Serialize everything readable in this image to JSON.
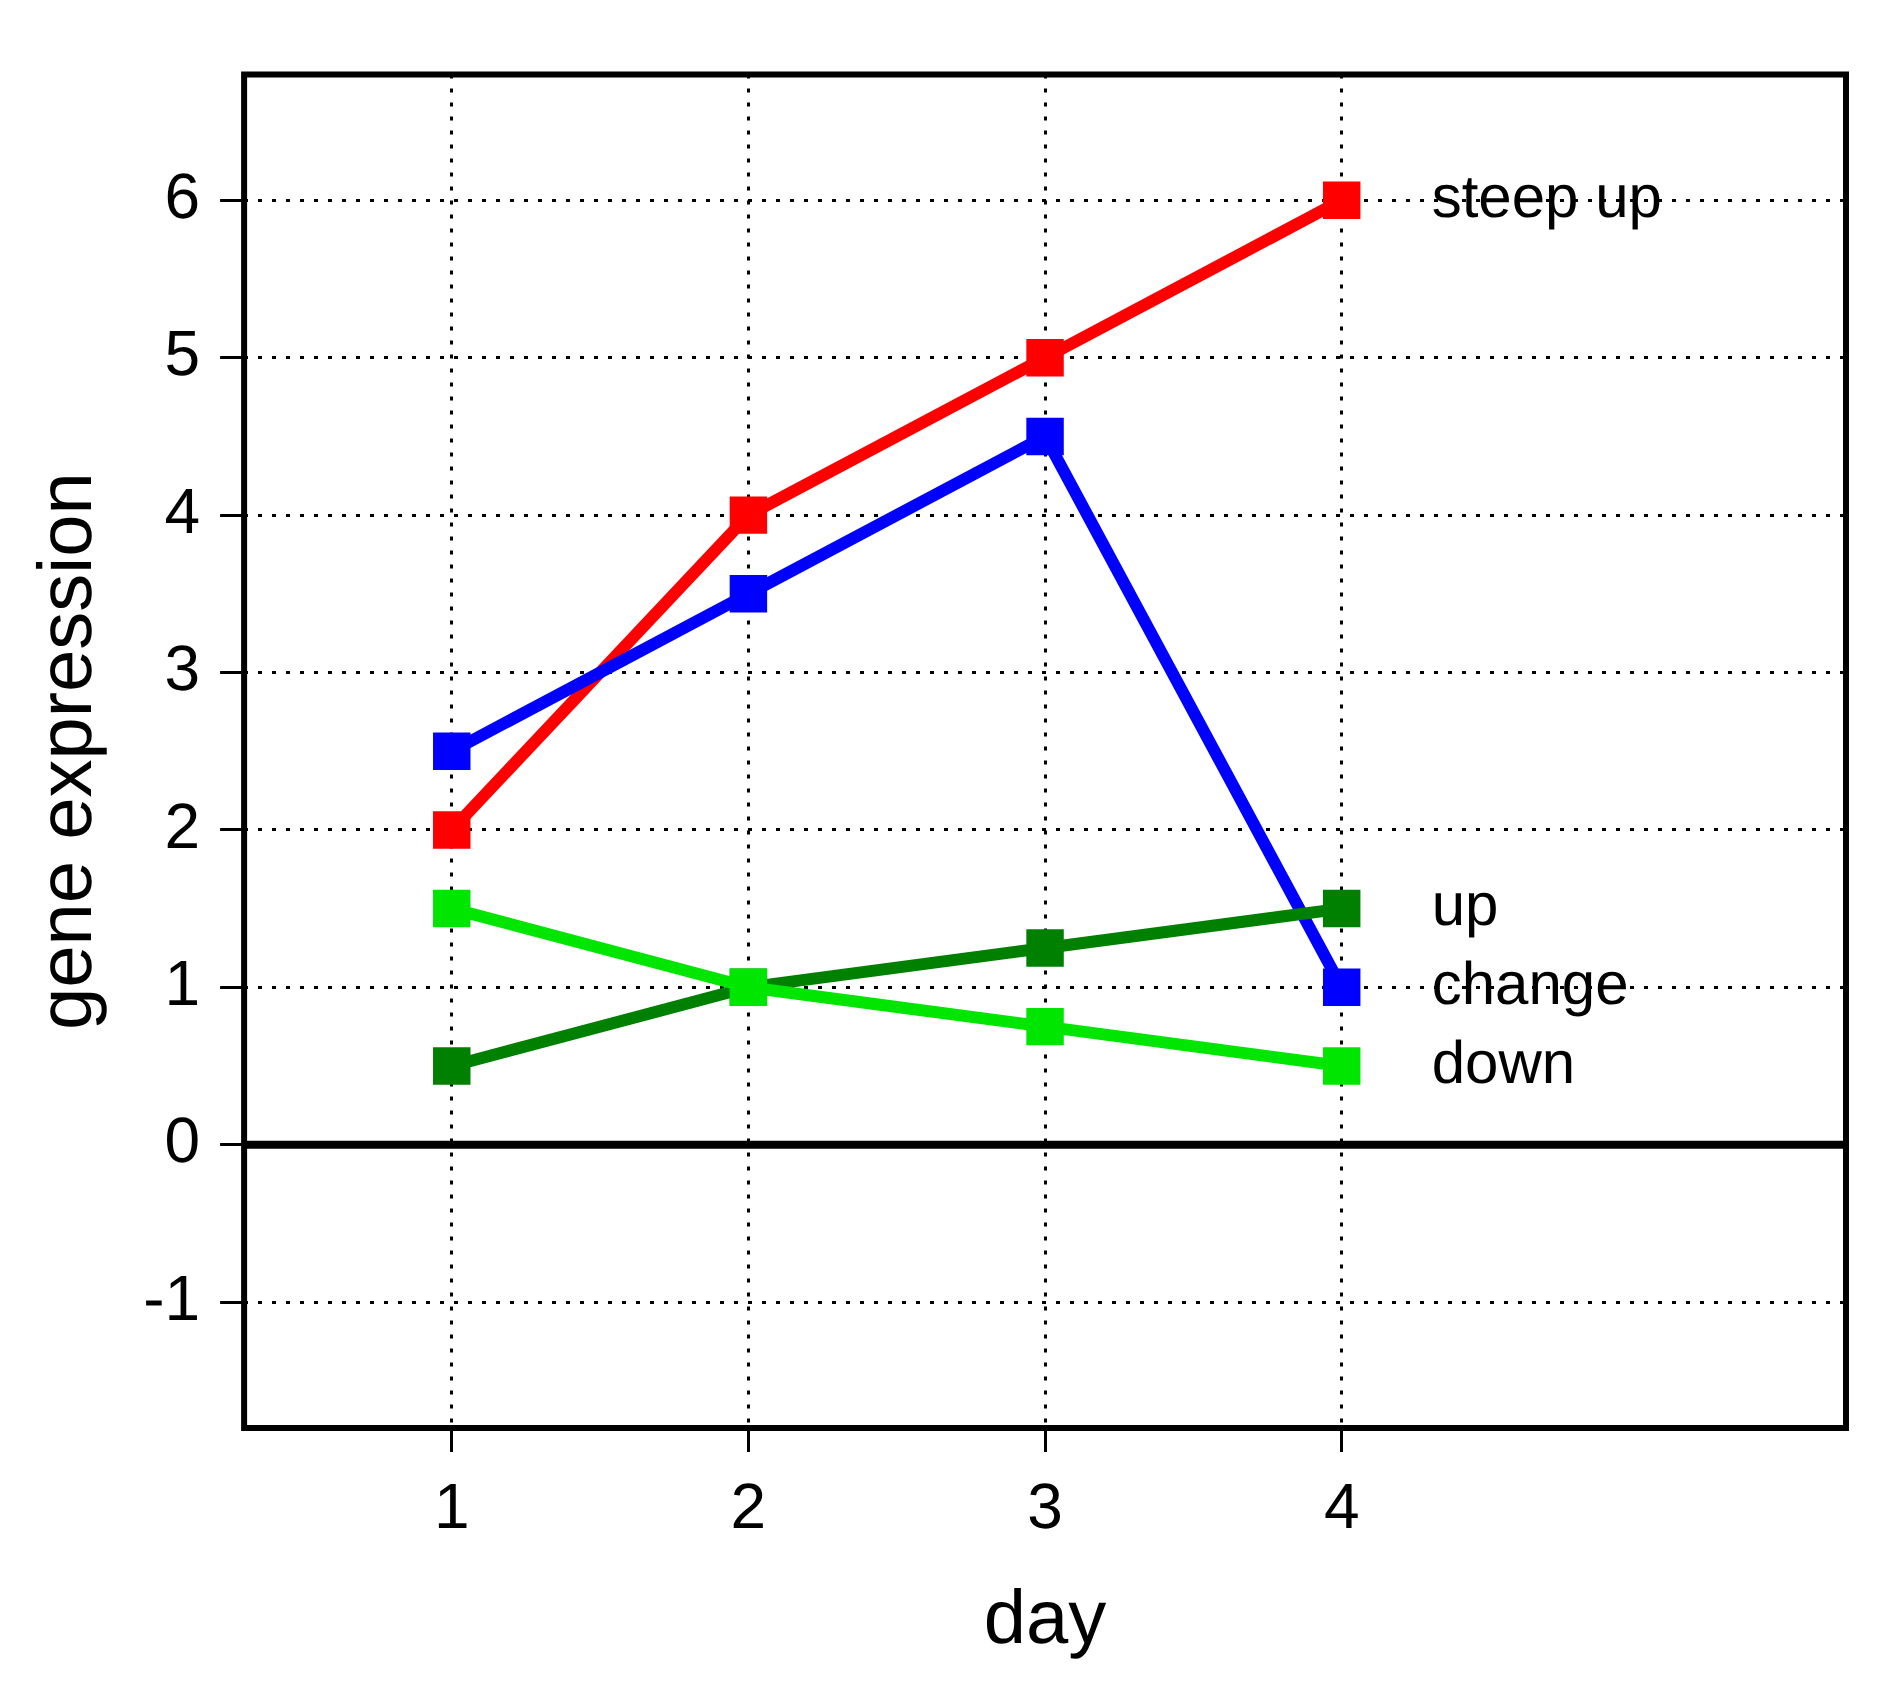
{
  "chart_data": {
    "type": "line",
    "xlabel": "day",
    "ylabel": "gene expression",
    "x": [
      1,
      2,
      3,
      4
    ],
    "xlim": [
      0.3,
      5.7
    ],
    "xticks": [
      1,
      2,
      3,
      4
    ],
    "ylim": [
      -1.8,
      6.8
    ],
    "yticks": [
      -1,
      0,
      1,
      2,
      3,
      4,
      5,
      6
    ],
    "series": [
      {
        "name": "steep up",
        "color": "#ff0000",
        "values": [
          2,
          4,
          5,
          6
        ]
      },
      {
        "name": "change",
        "color": "#0000ff",
        "values": [
          2.5,
          3.5,
          4.5,
          1
        ]
      },
      {
        "name": "up",
        "color": "#008000",
        "values": [
          0.5,
          1,
          1.25,
          1.5
        ]
      },
      {
        "name": "down",
        "color": "#00e600",
        "values": [
          1.5,
          1,
          0.75,
          0.5
        ]
      }
    ],
    "ref_lines": [
      {
        "axis": "y",
        "value": 0,
        "color": "#000000",
        "line_style": "solid"
      }
    ],
    "grid": true,
    "legend": false,
    "marker": "square",
    "line_style": "solid"
  }
}
